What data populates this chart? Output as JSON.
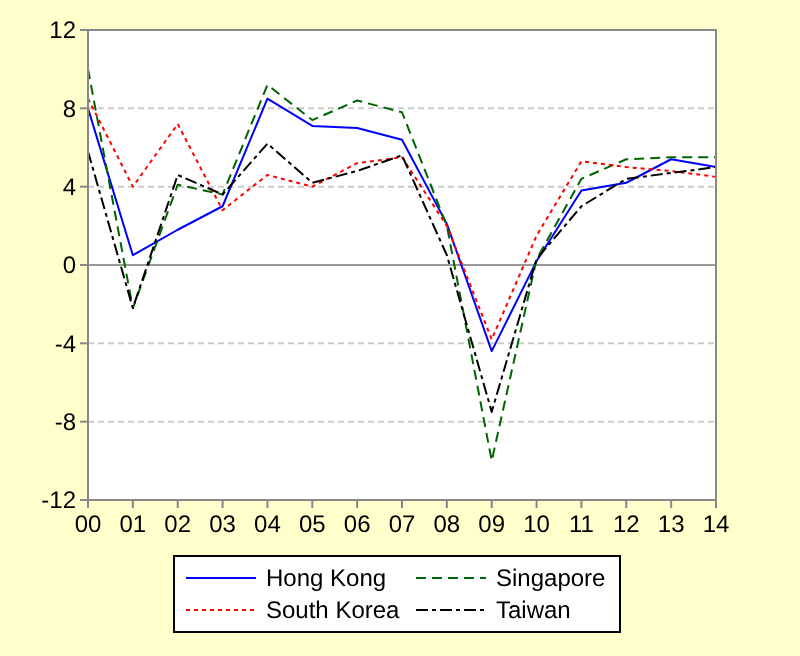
{
  "chart_data": {
    "type": "line",
    "categories": [
      "00",
      "01",
      "02",
      "03",
      "04",
      "05",
      "06",
      "07",
      "08",
      "09",
      "10",
      "11",
      "12",
      "13",
      "14"
    ],
    "series": [
      {
        "name": "Hong Kong",
        "color": "#0000ff",
        "line_style": "solid",
        "values": [
          8.0,
          0.5,
          1.8,
          3.0,
          8.5,
          7.1,
          7.0,
          6.4,
          2.1,
          -4.4,
          0.2,
          3.8,
          4.2,
          5.4,
          5.0
        ]
      },
      {
        "name": "Singapore",
        "color": "#006400",
        "line_style": "dashed",
        "values": [
          10.0,
          -2.2,
          4.1,
          3.6,
          9.2,
          7.4,
          8.4,
          7.8,
          2.0,
          -10.0,
          0.3,
          4.4,
          5.4,
          5.5,
          5.5
        ]
      },
      {
        "name": "South Korea",
        "color": "#ff0000",
        "line_style": "dotted",
        "values": [
          8.5,
          4.0,
          7.2,
          2.8,
          4.6,
          4.0,
          5.2,
          5.5,
          2.0,
          -3.8,
          1.5,
          5.3,
          5.0,
          4.8,
          4.5
        ]
      },
      {
        "name": "Taiwan",
        "color": "#000000",
        "line_style": "dashdot",
        "values": [
          5.8,
          -2.2,
          4.6,
          3.6,
          6.2,
          4.2,
          4.8,
          5.6,
          0.5,
          -7.5,
          0.3,
          3.0,
          4.4,
          4.7,
          5.0
        ]
      }
    ],
    "ylim": [
      -12,
      12
    ],
    "yticks": [
      -12,
      -8,
      -4,
      0,
      4,
      8,
      12
    ],
    "grid": "y",
    "ref_lines": [
      {
        "axis": "y",
        "value": 0,
        "color": "#999999",
        "line_style": "solid"
      }
    ],
    "legend": "bottom"
  }
}
